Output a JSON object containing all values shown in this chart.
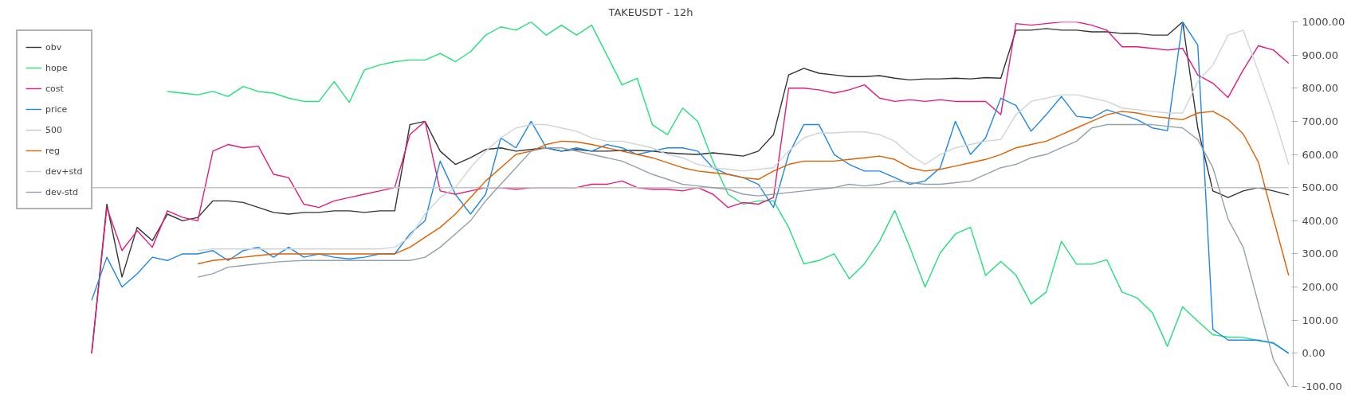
{
  "chart_data": {
    "type": "line",
    "title": "TAKEUSDT - 12h",
    "categories": [
      null,
      null,
      null,
      null,
      null,
      null,
      null,
      null,
      null,
      null,
      null,
      null,
      null,
      null,
      null,
      null,
      null,
      null,
      null,
      null,
      null,
      null,
      null,
      null,
      null,
      null,
      null,
      null,
      null,
      null,
      null,
      null,
      null,
      null,
      null,
      null,
      null,
      null,
      null,
      null,
      null,
      null,
      null,
      null,
      null,
      null,
      null,
      null,
      null,
      null,
      null,
      null,
      null,
      null,
      null,
      null,
      null,
      null,
      null,
      null,
      null,
      null,
      null,
      null,
      null,
      null,
      null,
      null,
      null,
      null,
      null,
      null,
      null,
      null,
      null,
      null,
      null,
      null,
      null,
      null
    ],
    "ylim": [
      -100,
      1000
    ],
    "yticks": [
      {
        "value": -100,
        "label": "-100.00"
      },
      {
        "value": 0,
        "label": "0.00"
      },
      {
        "value": 100,
        "label": "100.00"
      },
      {
        "value": 200,
        "label": "200.00"
      },
      {
        "value": 300,
        "label": "300.00"
      },
      {
        "value": 400,
        "label": "400.00"
      },
      {
        "value": 500,
        "label": "500.00"
      },
      {
        "value": 600,
        "label": "600.00"
      },
      {
        "value": 700,
        "label": "700.00"
      },
      {
        "value": 800,
        "label": "800.00"
      },
      {
        "value": 900,
        "label": "900.00"
      },
      {
        "value": 1000,
        "label": "1000.00"
      }
    ],
    "tick_labels": "y",
    "grid": false,
    "legend": "top left",
    "series": [
      {
        "name": "obv",
        "color": "#333333",
        "values": [
          0,
          450,
          230,
          380,
          340,
          420,
          400,
          410,
          460,
          460,
          455,
          440,
          425,
          420,
          425,
          425,
          430,
          430,
          425,
          430,
          430,
          690,
          700,
          610,
          570,
          590,
          615,
          620,
          610,
          615,
          620,
          610,
          615,
          610,
          610,
          612,
          612,
          610,
          605,
          602,
          600,
          605,
          600,
          595,
          610,
          660,
          840,
          860,
          845,
          840,
          835,
          835,
          838,
          830,
          825,
          828,
          828,
          830,
          828,
          832,
          830,
          975,
          975,
          980,
          975,
          975,
          970,
          970,
          965,
          965,
          960,
          960,
          1000,
          680,
          490,
          470,
          490,
          500,
          490,
          478
        ]
      },
      {
        "name": "hope",
        "color": "#22e07a",
        "values": [
          null,
          null,
          null,
          null,
          null,
          790,
          785,
          780,
          790,
          775,
          805,
          790,
          785,
          770,
          760,
          760,
          820,
          757,
          855,
          870,
          880,
          885,
          885,
          905,
          880,
          910,
          960,
          985,
          975,
          1000,
          960,
          990,
          960,
          990,
          900,
          810,
          830,
          690,
          660,
          740,
          700,
          580,
          480,
          450,
          460,
          460,
          380,
          270,
          280,
          300,
          225,
          270,
          338,
          431,
          320,
          200,
          303,
          360,
          380,
          235,
          277,
          236,
          149,
          185,
          338,
          269,
          269,
          282,
          185,
          167,
          123,
          21,
          140,
          97,
          56,
          49,
          48,
          38,
          32,
          0
        ]
      },
      {
        "name": "cost",
        "color": "#e6197d",
        "values": [
          0,
          440,
          310,
          370,
          320,
          430,
          410,
          400,
          610,
          630,
          620,
          625,
          540,
          530,
          450,
          440,
          460,
          470,
          480,
          490,
          500,
          660,
          700,
          490,
          480,
          490,
          500,
          500,
          495,
          500,
          500,
          500,
          500,
          510,
          510,
          520,
          500,
          495,
          495,
          490,
          500,
          480,
          440,
          455,
          450,
          470,
          800,
          800,
          795,
          785,
          795,
          810,
          770,
          760,
          765,
          760,
          765,
          760,
          760,
          760,
          720,
          995,
          990,
          995,
          1000,
          1000,
          990,
          975,
          925,
          925,
          920,
          915,
          920,
          840,
          815,
          772,
          855,
          928,
          915,
          875
        ]
      },
      {
        "name": "price",
        "color": "#1e88e5",
        "values": [
          160,
          290,
          200,
          240,
          290,
          280,
          300,
          300,
          310,
          280,
          310,
          320,
          290,
          320,
          290,
          300,
          290,
          285,
          290,
          300,
          300,
          360,
          400,
          580,
          480,
          420,
          480,
          650,
          620,
          700,
          620,
          610,
          620,
          610,
          630,
          620,
          600,
          610,
          620,
          620,
          610,
          560,
          540,
          530,
          510,
          440,
          600,
          690,
          690,
          600,
          570,
          550,
          550,
          530,
          510,
          520,
          560,
          700,
          600,
          650,
          770,
          748,
          670,
          720,
          775,
          715,
          710,
          735,
          720,
          705,
          680,
          672,
          1000,
          930,
          72,
          40,
          40,
          40,
          30,
          0
        ]
      },
      {
        "name": "500",
        "color": "#c4c4c4",
        "values": [
          500,
          500,
          500,
          500,
          500,
          500,
          500,
          500,
          500,
          500,
          500,
          500,
          500,
          500,
          500,
          500,
          500,
          500,
          500,
          500,
          500,
          500,
          500,
          500,
          500,
          500,
          500,
          500,
          500,
          500,
          500,
          500,
          500,
          500,
          500,
          500,
          500,
          500,
          500,
          500,
          500,
          500,
          500,
          500,
          500,
          500,
          500,
          500,
          500,
          500,
          500,
          500,
          500,
          500,
          500,
          500,
          500,
          500,
          500,
          500,
          500,
          500,
          500,
          500,
          500,
          500,
          500,
          500,
          500,
          500,
          500,
          500,
          500,
          500,
          500,
          500,
          500,
          500,
          500,
          500
        ]
      },
      {
        "name": "reg",
        "color": "#e06000",
        "values": [
          null,
          null,
          null,
          null,
          null,
          null,
          null,
          270,
          280,
          285,
          290,
          295,
          300,
          300,
          300,
          300,
          300,
          300,
          300,
          300,
          300,
          320,
          350,
          380,
          420,
          470,
          520,
          560,
          600,
          610,
          630,
          640,
          638,
          630,
          620,
          610,
          600,
          590,
          575,
          560,
          550,
          545,
          540,
          530,
          525,
          550,
          570,
          580,
          580,
          580,
          585,
          590,
          595,
          585,
          560,
          550,
          555,
          565,
          575,
          585,
          600,
          620,
          630,
          640,
          660,
          680,
          700,
          720,
          730,
          725,
          715,
          710,
          705,
          725,
          730,
          705,
          662,
          577,
          405,
          235
        ]
      },
      {
        "name": "dev+std",
        "color": "#cfd4d9",
        "values": [
          null,
          null,
          null,
          null,
          null,
          null,
          null,
          310,
          315,
          315,
          315,
          315,
          315,
          315,
          315,
          315,
          315,
          315,
          315,
          315,
          320,
          350,
          420,
          470,
          500,
          560,
          610,
          650,
          680,
          690,
          690,
          680,
          670,
          650,
          640,
          640,
          630,
          620,
          600,
          590,
          570,
          560,
          555,
          550,
          555,
          560,
          610,
          650,
          665,
          665,
          668,
          668,
          660,
          640,
          600,
          570,
          600,
          620,
          630,
          640,
          645,
          720,
          760,
          770,
          780,
          780,
          770,
          760,
          740,
          735,
          730,
          725,
          725,
          820,
          870,
          960,
          975,
          850,
          720,
          570
        ]
      },
      {
        "name": "dev-std",
        "color": "#93a0ab",
        "values": [
          null,
          null,
          null,
          null,
          null,
          null,
          null,
          230,
          240,
          260,
          265,
          270,
          275,
          278,
          280,
          280,
          280,
          280,
          280,
          280,
          280,
          280,
          290,
          320,
          360,
          400,
          460,
          510,
          560,
          610,
          620,
          620,
          610,
          600,
          590,
          580,
          560,
          540,
          525,
          510,
          505,
          500,
          495,
          480,
          475,
          480,
          485,
          490,
          495,
          500,
          510,
          505,
          510,
          520,
          515,
          510,
          510,
          515,
          520,
          540,
          560,
          570,
          590,
          600,
          620,
          640,
          680,
          690,
          690,
          690,
          690,
          685,
          680,
          645,
          560,
          405,
          320,
          150,
          -20,
          -100
        ]
      }
    ]
  }
}
